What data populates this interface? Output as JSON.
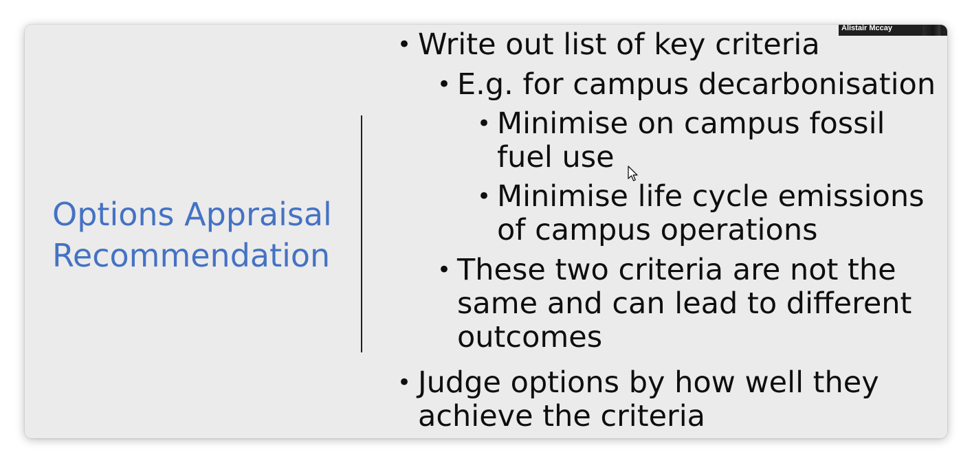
{
  "slide": {
    "title_lines": [
      "Options Appraisal",
      "Recommendation"
    ],
    "bullets": [
      {
        "level": 1,
        "lines": [
          "Write out list of key criteria"
        ]
      },
      {
        "level": 2,
        "lines": [
          "E.g. for campus decarbonisation"
        ]
      },
      {
        "level": 3,
        "lines": [
          "Minimise on campus fossil",
          "fuel use"
        ]
      },
      {
        "level": 3,
        "lines": [
          "Minimise life cycle emissions",
          "of campus operations"
        ]
      },
      {
        "level": 2,
        "lines": [
          "These two criteria are not the",
          "same and can lead to different",
          "outcomes"
        ]
      },
      {
        "level": 1,
        "lines": [
          "Judge options by how well they",
          "achieve the criteria"
        ]
      }
    ],
    "bullet_glyph": "•"
  },
  "video_tile": {
    "participant_name": "Alistair Mccay"
  },
  "cursor": {
    "icon": "mouse-pointer-icon"
  },
  "colors": {
    "title": "#4472c4",
    "slide_background": "#ebebeb",
    "text": "#0e0e0e"
  }
}
